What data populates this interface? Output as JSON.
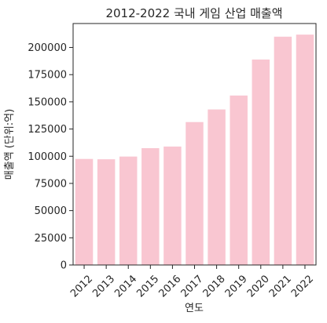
{
  "chart_data": {
    "type": "bar",
    "title": "2012-2022 국내 게임 산업 매출액",
    "xlabel": "연도",
    "ylabel": "매출액 (단위:억)",
    "categories": [
      "2012",
      "2013",
      "2014",
      "2015",
      "2016",
      "2017",
      "2018",
      "2019",
      "2020",
      "2021",
      "2022"
    ],
    "values": [
      97500,
      97200,
      99700,
      107400,
      108900,
      131400,
      143000,
      155800,
      188900,
      209900,
      211800
    ],
    "ylim": [
      0,
      222000
    ],
    "yticks": [
      0,
      25000,
      50000,
      75000,
      100000,
      125000,
      150000,
      175000,
      200000
    ],
    "bar_color": "#f9c6d1",
    "grid": false,
    "legend": "none"
  }
}
